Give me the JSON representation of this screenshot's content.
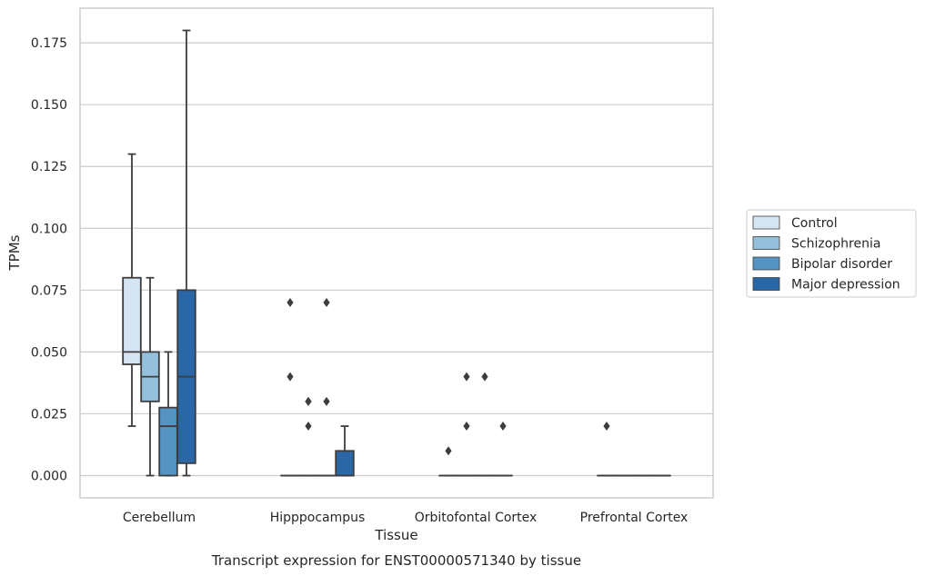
{
  "chart_data": {
    "type": "box",
    "xlabel": "Tissue",
    "ylabel": "TPMs",
    "caption": "Transcript expression for ENST00000571340 by tissue",
    "ylim": [
      -0.009,
      0.189
    ],
    "yticks": [
      "0.000",
      "0.025",
      "0.050",
      "0.075",
      "0.100",
      "0.125",
      "0.150",
      "0.175"
    ],
    "grid": "horizontal",
    "legend_position": "right",
    "categories": [
      "Cerebellum",
      "Hipppocampus",
      "Orbitofontal Cortex",
      "Prefrontal Cortex"
    ],
    "series": [
      {
        "name": "Control",
        "color": "#d6e5f3",
        "boxes": [
          {
            "whislo": 0.02,
            "q1": 0.045,
            "med": 0.05,
            "q3": 0.08,
            "whishi": 0.13,
            "fliers": []
          },
          {
            "whislo": 0.0,
            "q1": 0.0,
            "med": 0.0,
            "q3": 0.0,
            "whishi": 0.0,
            "fliers": [
              0.07,
              0.04
            ]
          },
          {
            "whislo": 0.0,
            "q1": 0.0,
            "med": 0.0,
            "q3": 0.0,
            "whishi": 0.0,
            "fliers": [
              0.01
            ]
          },
          {
            "whislo": 0.0,
            "q1": 0.0,
            "med": 0.0,
            "q3": 0.0,
            "whishi": 0.0,
            "fliers": [
              0.02
            ]
          }
        ]
      },
      {
        "name": "Schizophrenia",
        "color": "#95c0dc",
        "boxes": [
          {
            "whislo": 0.0,
            "q1": 0.03,
            "med": 0.04,
            "q3": 0.05,
            "whishi": 0.08,
            "fliers": []
          },
          {
            "whislo": 0.0,
            "q1": 0.0,
            "med": 0.0,
            "q3": 0.0,
            "whishi": 0.0,
            "fliers": [
              0.03,
              0.03,
              0.02
            ]
          },
          {
            "whislo": 0.0,
            "q1": 0.0,
            "med": 0.0,
            "q3": 0.0,
            "whishi": 0.0,
            "fliers": [
              0.04,
              0.02
            ]
          },
          {
            "whislo": 0.0,
            "q1": 0.0,
            "med": 0.0,
            "q3": 0.0,
            "whishi": 0.0,
            "fliers": []
          }
        ]
      },
      {
        "name": "Bipolar disorder",
        "color": "#5593c2",
        "boxes": [
          {
            "whislo": 0.0,
            "q1": 0.0,
            "med": 0.02,
            "q3": 0.0275,
            "whishi": 0.05,
            "fliers": []
          },
          {
            "whislo": 0.0,
            "q1": 0.0,
            "med": 0.0,
            "q3": 0.0,
            "whishi": 0.0,
            "fliers": [
              0.07,
              0.03
            ]
          },
          {
            "whislo": 0.0,
            "q1": 0.0,
            "med": 0.0,
            "q3": 0.0,
            "whishi": 0.0,
            "fliers": [
              0.04
            ]
          },
          {
            "whislo": 0.0,
            "q1": 0.0,
            "med": 0.0,
            "q3": 0.0,
            "whishi": 0.0,
            "fliers": []
          }
        ]
      },
      {
        "name": "Major depression",
        "color": "#2a67a6",
        "boxes": [
          {
            "whislo": 0.0,
            "q1": 0.005,
            "med": 0.04,
            "q3": 0.075,
            "whishi": 0.18,
            "fliers": []
          },
          {
            "whislo": 0.0,
            "q1": 0.0,
            "med": 0.0,
            "q3": 0.01,
            "whishi": 0.02,
            "fliers": []
          },
          {
            "whislo": 0.0,
            "q1": 0.0,
            "med": 0.0,
            "q3": 0.0,
            "whishi": 0.0,
            "fliers": [
              0.02
            ]
          },
          {
            "whislo": 0.0,
            "q1": 0.0,
            "med": 0.0,
            "q3": 0.0,
            "whishi": 0.0,
            "fliers": []
          }
        ]
      }
    ]
  }
}
